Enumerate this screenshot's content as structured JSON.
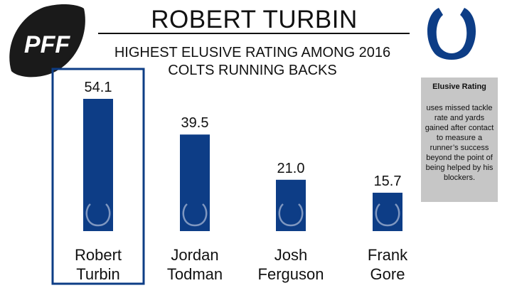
{
  "header": {
    "title": "ROBERT TURBIN",
    "subtitle_line1": "HIGHEST ELUSIVE RATING AMONG 2016",
    "subtitle_line2": "COLTS RUNNING BACKS"
  },
  "logo": {
    "text": "PFF"
  },
  "info_box": {
    "title": "Elusive Rating",
    "text": "uses missed tackle rate and yards gained after contact to measure a runner’s success beyond the point of being helped by his blockers."
  },
  "colors": {
    "bar": "#0d3d86",
    "highlight_border": "#0d3d86",
    "info_box": "#c6c6c6",
    "text": "#111111"
  },
  "chart_data": {
    "type": "bar",
    "categories": [
      "Robert Turbin",
      "Jordan Todman",
      "Josh Ferguson",
      "Frank Gore"
    ],
    "category_lines": [
      [
        "Robert",
        "Turbin"
      ],
      [
        "Jordan",
        "Todman"
      ],
      [
        "Josh",
        "Ferguson"
      ],
      [
        "Frank",
        "Gore"
      ]
    ],
    "values": [
      54.1,
      39.5,
      21.0,
      15.7
    ],
    "value_labels": [
      "54.1",
      "39.5",
      "21.0",
      "15.7"
    ],
    "title": "ROBERT TURBIN",
    "xlabel": "",
    "ylabel": "",
    "highlighted_category": "Robert Turbin",
    "grid": false,
    "bar_icon": "horseshoe-icon"
  }
}
